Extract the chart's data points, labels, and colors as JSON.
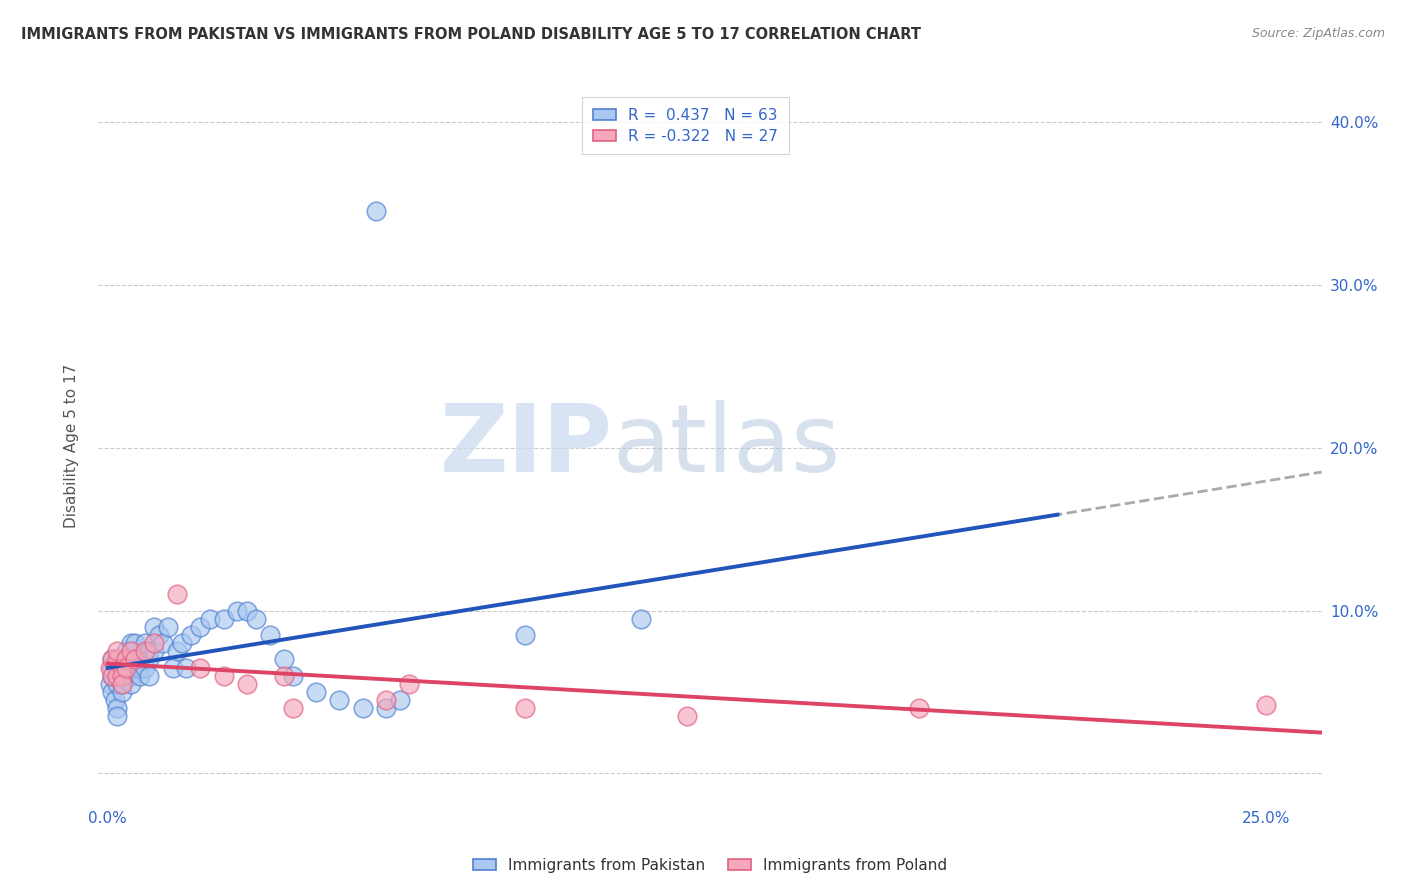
{
  "title": "IMMIGRANTS FROM PAKISTAN VS IMMIGRANTS FROM POLAND DISABILITY AGE 5 TO 17 CORRELATION CHART",
  "source": "Source: ZipAtlas.com",
  "ylabel": "Disability Age 5 to 17",
  "xlim": [
    -0.002,
    0.262
  ],
  "ylim": [
    -0.018,
    0.42
  ],
  "pakistan_fill_color": "#aac8f0",
  "pakistan_edge_color": "#5080d0",
  "poland_fill_color": "#f5a8bc",
  "poland_edge_color": "#e06080",
  "pakistan_line_color": "#2255bb",
  "poland_line_color": "#dd4466",
  "dashed_line_color": "#aaaaaa",
  "R_pakistan": 0.437,
  "N_pakistan": 63,
  "R_poland": -0.322,
  "N_poland": 27,
  "pakistan_x": [
    0.0005,
    0.001,
    0.001,
    0.001,
    0.001,
    0.0015,
    0.002,
    0.002,
    0.002,
    0.002,
    0.002,
    0.003,
    0.003,
    0.003,
    0.003,
    0.003,
    0.004,
    0.004,
    0.004,
    0.004,
    0.005,
    0.005,
    0.005,
    0.005,
    0.005,
    0.006,
    0.006,
    0.006,
    0.007,
    0.007,
    0.007,
    0.008,
    0.008,
    0.009,
    0.009,
    0.009,
    0.01,
    0.01,
    0.011,
    0.012,
    0.013,
    0.014,
    0.015,
    0.016,
    0.017,
    0.018,
    0.02,
    0.022,
    0.025,
    0.028,
    0.03,
    0.032,
    0.035,
    0.038,
    0.04,
    0.045,
    0.05,
    0.055,
    0.06,
    0.063,
    0.09,
    0.115,
    0.058
  ],
  "pakistan_y": [
    0.055,
    0.05,
    0.06,
    0.07,
    0.065,
    0.045,
    0.055,
    0.06,
    0.065,
    0.04,
    0.035,
    0.06,
    0.065,
    0.07,
    0.055,
    0.05,
    0.07,
    0.065,
    0.06,
    0.075,
    0.06,
    0.065,
    0.07,
    0.055,
    0.08,
    0.065,
    0.07,
    0.08,
    0.065,
    0.07,
    0.06,
    0.065,
    0.08,
    0.07,
    0.06,
    0.075,
    0.075,
    0.09,
    0.085,
    0.08,
    0.09,
    0.065,
    0.075,
    0.08,
    0.065,
    0.085,
    0.09,
    0.095,
    0.095,
    0.1,
    0.1,
    0.095,
    0.085,
    0.07,
    0.06,
    0.05,
    0.045,
    0.04,
    0.04,
    0.045,
    0.085,
    0.095,
    0.345
  ],
  "poland_x": [
    0.0005,
    0.001,
    0.001,
    0.002,
    0.002,
    0.002,
    0.003,
    0.003,
    0.003,
    0.004,
    0.004,
    0.005,
    0.006,
    0.008,
    0.01,
    0.015,
    0.02,
    0.025,
    0.03,
    0.038,
    0.04,
    0.06,
    0.065,
    0.09,
    0.125,
    0.175,
    0.25
  ],
  "poland_y": [
    0.065,
    0.06,
    0.07,
    0.06,
    0.07,
    0.075,
    0.065,
    0.06,
    0.055,
    0.07,
    0.065,
    0.075,
    0.07,
    0.075,
    0.08,
    0.11,
    0.065,
    0.06,
    0.055,
    0.06,
    0.04,
    0.045,
    0.055,
    0.04,
    0.035,
    0.04,
    0.042
  ],
  "watermark_zip": "ZIP",
  "watermark_atlas": "atlas",
  "background_color": "#ffffff",
  "grid_color": "#cccccc"
}
